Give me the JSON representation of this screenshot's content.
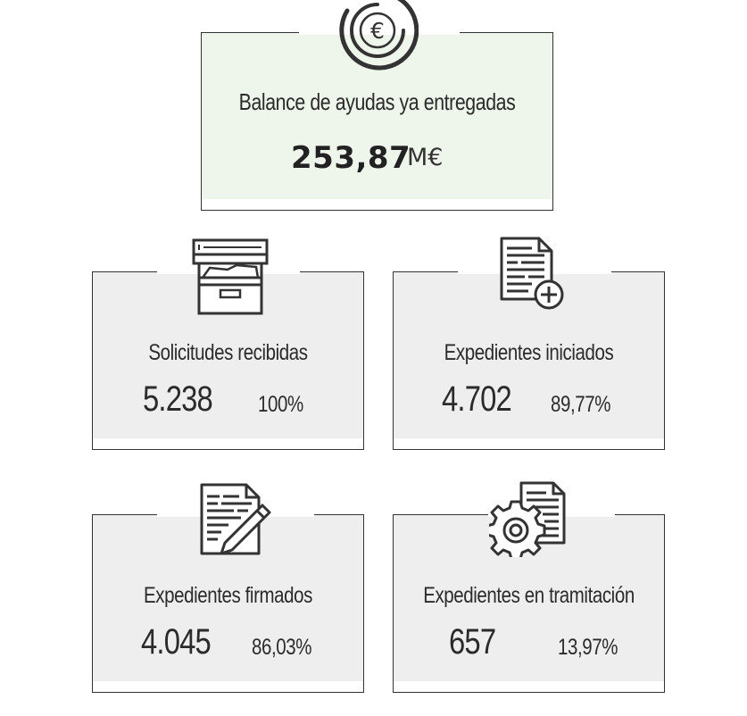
{
  "balance": {
    "label": "Balance de ayudas ya entregadas",
    "value": "253,87",
    "unit": "M€",
    "icon": "euro-coin-icon",
    "accent": "#eef5ea"
  },
  "stats": [
    {
      "label": "Solicitudes recibidas",
      "value": "5.238",
      "percent": "100%",
      "icon": "filing-cabinet-icon"
    },
    {
      "label": "Expedientes iniciados",
      "value": "4.702",
      "percent": "89,77%",
      "icon": "document-add-icon"
    },
    {
      "label": "Expedientes firmados",
      "value": "4.045",
      "percent": "86,03%",
      "icon": "document-sign-icon"
    },
    {
      "label": "Expedientes en tramitación",
      "value": "657",
      "percent": "13,97%",
      "icon": "document-gear-icon"
    }
  ]
}
